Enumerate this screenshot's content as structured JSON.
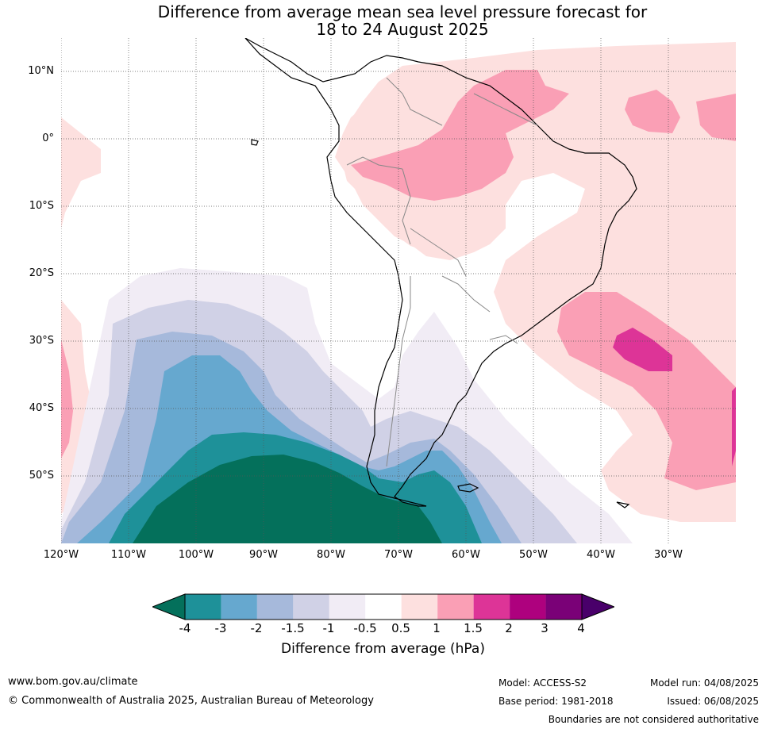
{
  "title": {
    "line1": "Difference from average mean sea level pressure forecast for",
    "line2": "18 to 24 August 2025"
  },
  "map": {
    "lat_labels": [
      "10°N",
      "0°",
      "10°S",
      "20°S",
      "30°S",
      "40°S",
      "50°S"
    ],
    "lon_labels": [
      "120°W",
      "110°W",
      "100°W",
      "90°W",
      "80°W",
      "70°W",
      "60°W",
      "50°W",
      "40°W",
      "30°W"
    ]
  },
  "colorbar": {
    "ticks": [
      "-4",
      "-3",
      "-2",
      "-1.5",
      "-1",
      "-0.5",
      "0.5",
      "1",
      "1.5",
      "2",
      "3",
      "4"
    ],
    "colors": [
      "#04705b",
      "#1e9199",
      "#66a8cf",
      "#a6b9db",
      "#d0d1e6",
      "#f1ecf5",
      "#ffffff",
      "#fde0df",
      "#fa9fb5",
      "#dd3497",
      "#ae017e",
      "#7a0177",
      "#49006a"
    ],
    "title": "Difference from average (hPa)"
  },
  "footer": {
    "url": "www.bom.gov.au/climate",
    "copyright": "© Commonwealth of Australia 2025, Australian Bureau of Meteorology",
    "model": "Model: ACCESS-S2",
    "base_period": "Base period: 1981-2018",
    "model_run": "Model run: 04/08/2025",
    "issued": "Issued: 06/08/2025",
    "disclaimer": "Boundaries are not considered authoritative"
  }
}
